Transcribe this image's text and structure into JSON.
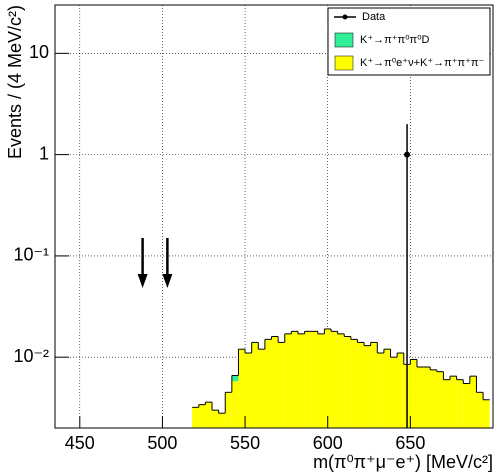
{
  "chart_data": {
    "type": "histogram",
    "xlabel": "m(π⁰π⁺μ⁻e⁺) [MeV/c²]",
    "ylabel": "Events / (4 MeV/c²)",
    "xlim": [
      435,
      700
    ],
    "ylim": [
      0.002,
      30
    ],
    "log_y": true,
    "grid": true,
    "legend": "top-right",
    "xticks": [
      450,
      500,
      550,
      600,
      650
    ],
    "yticks": [
      {
        "value": 0.01,
        "label": "10⁻²"
      },
      {
        "value": 0.1,
        "label": "10⁻¹"
      },
      1,
      10
    ],
    "bins": [
      518,
      522,
      526,
      530,
      534,
      538,
      542,
      546,
      550,
      554,
      558,
      562,
      566,
      570,
      574,
      578,
      582,
      586,
      590,
      594,
      598,
      602,
      606,
      610,
      614,
      618,
      622,
      626,
      630,
      634,
      638,
      642,
      646,
      650,
      654,
      658,
      662,
      666,
      670,
      674,
      678,
      682,
      686,
      690,
      694,
      698
    ],
    "series": [
      {
        "name": "K⁺→π⁰e⁺ν+K⁺→π⁺π⁺π⁻",
        "color": "#ffff00",
        "values": [
          0.0032,
          0.0034,
          0.0036,
          0.003,
          0.0028,
          0.0045,
          0.0058,
          0.012,
          0.011,
          0.014,
          0.012,
          0.015,
          0.016,
          0.014,
          0.017,
          0.018,
          0.017,
          0.018,
          0.018,
          0.017,
          0.019,
          0.018,
          0.017,
          0.016,
          0.015,
          0.014,
          0.013,
          0.014,
          0.011,
          0.012,
          0.01,
          0.011,
          0.0085,
          0.0095,
          0.008,
          0.008,
          0.0075,
          0.0072,
          0.006,
          0.0065,
          0.006,
          0.0055,
          0.0065,
          0.0045,
          0.0038
        ]
      },
      {
        "name": "K⁺→π⁺π⁰π⁰D",
        "color": "#33ee99",
        "values": [
          0,
          0,
          0,
          0,
          0,
          0,
          0.0008,
          0,
          0,
          0,
          0,
          0,
          0,
          0,
          0,
          0,
          0,
          0,
          0,
          0,
          0,
          0,
          0,
          0,
          0,
          0,
          0,
          0,
          0,
          0,
          0,
          0,
          0,
          0,
          0,
          0,
          0,
          0,
          0,
          0,
          0,
          0,
          0,
          0,
          0
        ]
      }
    ],
    "data": {
      "name": "Data",
      "color": "#000000",
      "x": [
        648
      ],
      "values": [
        1
      ],
      "errors": [
        1
      ]
    },
    "arrows": [
      488,
      503
    ]
  }
}
